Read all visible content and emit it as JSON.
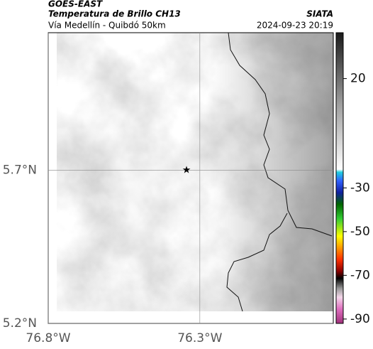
{
  "header": {
    "product": "GOES-EAST",
    "title": "Temperatura de Brillo CH13",
    "subtitle": "Vía Medellín - Quibdó 50km",
    "source": "SIATA",
    "timestamp": "2024-09-23 20:19"
  },
  "map": {
    "xlim": [
      -76.8,
      -75.86
    ],
    "ylim": [
      5.2,
      6.15
    ],
    "xticks": [
      {
        "value": -76.8,
        "label": "76.8°W"
      },
      {
        "value": -76.3,
        "label": "76.3°W"
      }
    ],
    "yticks": [
      {
        "value": 5.2,
        "label": "5.2°N"
      },
      {
        "value": 5.7,
        "label": "5.7°N"
      }
    ],
    "grid": true,
    "marker": {
      "lon": -76.344,
      "lat": 5.7
    }
  },
  "colorbar": {
    "clim": [
      -92,
      41
    ],
    "ticks": [
      20,
      -30,
      -50,
      -70,
      -90
    ]
  }
}
